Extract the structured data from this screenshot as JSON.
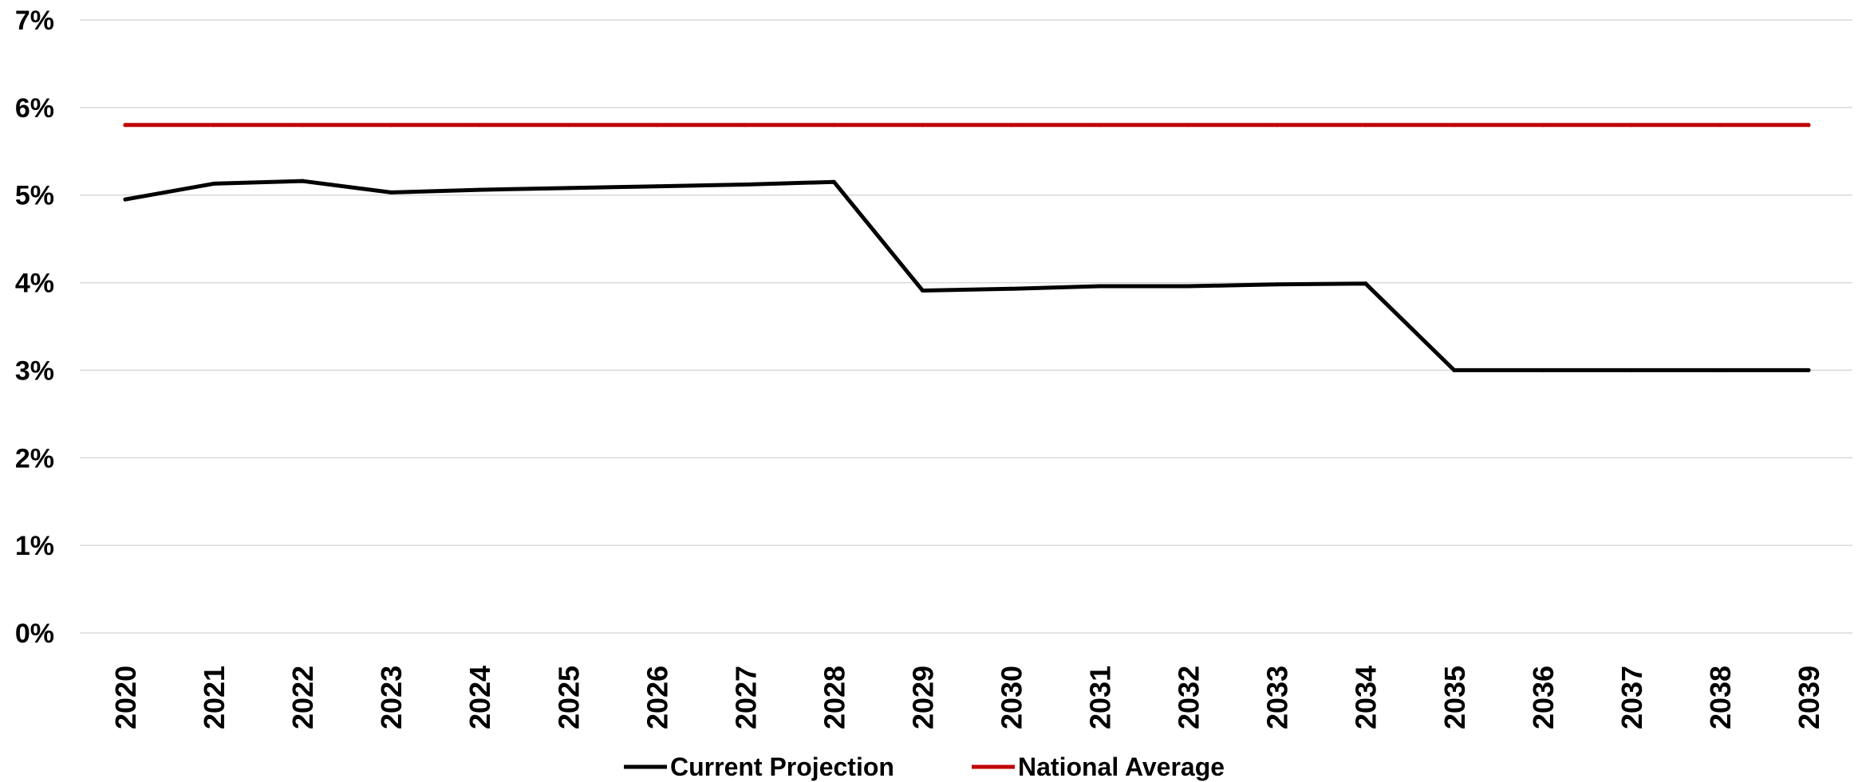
{
  "chart_data": {
    "type": "line",
    "categories": [
      "2020",
      "2021",
      "2022",
      "2023",
      "2024",
      "2025",
      "2026",
      "2027",
      "2028",
      "2029",
      "2030",
      "2031",
      "2032",
      "2033",
      "2034",
      "2035",
      "2036",
      "2037",
      "2038",
      "2039"
    ],
    "series": [
      {
        "name": "Current Projection",
        "color": "#000000",
        "values": [
          4.95,
          5.13,
          5.16,
          5.03,
          5.06,
          5.08,
          5.1,
          5.12,
          5.15,
          3.91,
          3.93,
          3.96,
          3.96,
          3.98,
          3.99,
          3.0,
          3.0,
          3.0,
          3.0,
          3.0
        ]
      },
      {
        "name": "National Average",
        "color": "#c00000",
        "values": [
          5.8,
          5.8,
          5.8,
          5.8,
          5.8,
          5.8,
          5.8,
          5.8,
          5.8,
          5.8,
          5.8,
          5.8,
          5.8,
          5.8,
          5.8,
          5.8,
          5.8,
          5.8,
          5.8,
          5.8
        ]
      }
    ],
    "yticks": [
      "0%",
      "1%",
      "2%",
      "3%",
      "4%",
      "5%",
      "6%",
      "7%"
    ],
    "ylim": [
      0,
      7
    ],
    "grid": true,
    "legend": "bottom"
  }
}
